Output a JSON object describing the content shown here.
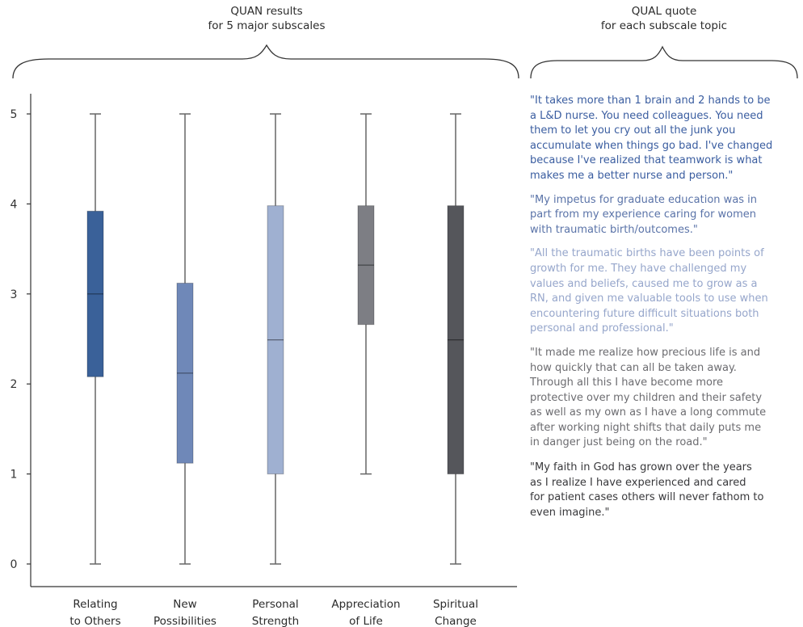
{
  "headers": {
    "quan_line1": "QUAN results",
    "quan_line2": "for 5 major subscales",
    "qual_line1": "QUAL quote",
    "qual_line2": "for each subscale topic"
  },
  "chart_data": {
    "type": "box",
    "ylim": [
      0,
      5
    ],
    "yticks": [
      "0",
      "1",
      "2",
      "3",
      "4",
      "5"
    ],
    "categories": [
      {
        "line1": "Relating",
        "line2": "to Others"
      },
      {
        "line1": "New",
        "line2": "Possibilities"
      },
      {
        "line1": "Personal",
        "line2": "Strength"
      },
      {
        "line1": "Appreciation",
        "line2": "of Life"
      },
      {
        "line1": "Spiritual",
        "line2": "Change"
      }
    ],
    "boxes": [
      {
        "min": 0,
        "q1": 2.08,
        "median": 3.0,
        "q3": 3.92,
        "max": 5,
        "color": "#3a6199"
      },
      {
        "min": 0,
        "q1": 1.12,
        "median": 2.12,
        "q3": 3.12,
        "max": 5,
        "color": "#6f88b8"
      },
      {
        "min": 0,
        "q1": 1.0,
        "median": 2.49,
        "q3": 3.98,
        "max": 5,
        "color": "#9fb0d1"
      },
      {
        "min": 1,
        "q1": 2.66,
        "median": 3.32,
        "q3": 3.98,
        "max": 5,
        "color": "#7d7e84"
      },
      {
        "min": 0,
        "q1": 1.0,
        "median": 2.49,
        "q3": 3.98,
        "max": 5,
        "color": "#55565b"
      }
    ]
  },
  "quotes": [
    {
      "text": "\"It takes more than 1 brain and 2 hands to be\na L&D nurse. You need colleagues. You need\nthem to let you cry out all the junk you\naccumulate when things go bad. I've changed\nbecause I've realized that teamwork is what\nmakes me a better nurse and person.\"",
      "color": "#3a5da0"
    },
    {
      "text": "\"My impetus for graduate education was in\npart from my experience caring for women\nwith traumatic birth/outcomes.\"",
      "color": "#5a73a8"
    },
    {
      "text": "\"All the traumatic births have been points of\ngrowth for me. They have challenged my\nvalues and beliefs, caused me to grow as a\nRN, and given me valuable tools to use when\nencountering future difficult situations both\npersonal and professional.\"",
      "color": "#96a6cb"
    },
    {
      "text": "\"It made me realize how precious life is and\nhow quickly that can all be taken away.\nThrough all this I have become more\nprotective over my children and their safety\nas well as my own as I have a long commute\nafter working night shifts that daily puts me\nin danger just being on the road.\"",
      "color": "#6c6c70"
    },
    {
      "text": "\"My faith in God has grown over the years\nas I realize I have experienced and cared\nfor patient cases others will never fathom to\neven imagine.\"",
      "color": "#38383b"
    }
  ]
}
